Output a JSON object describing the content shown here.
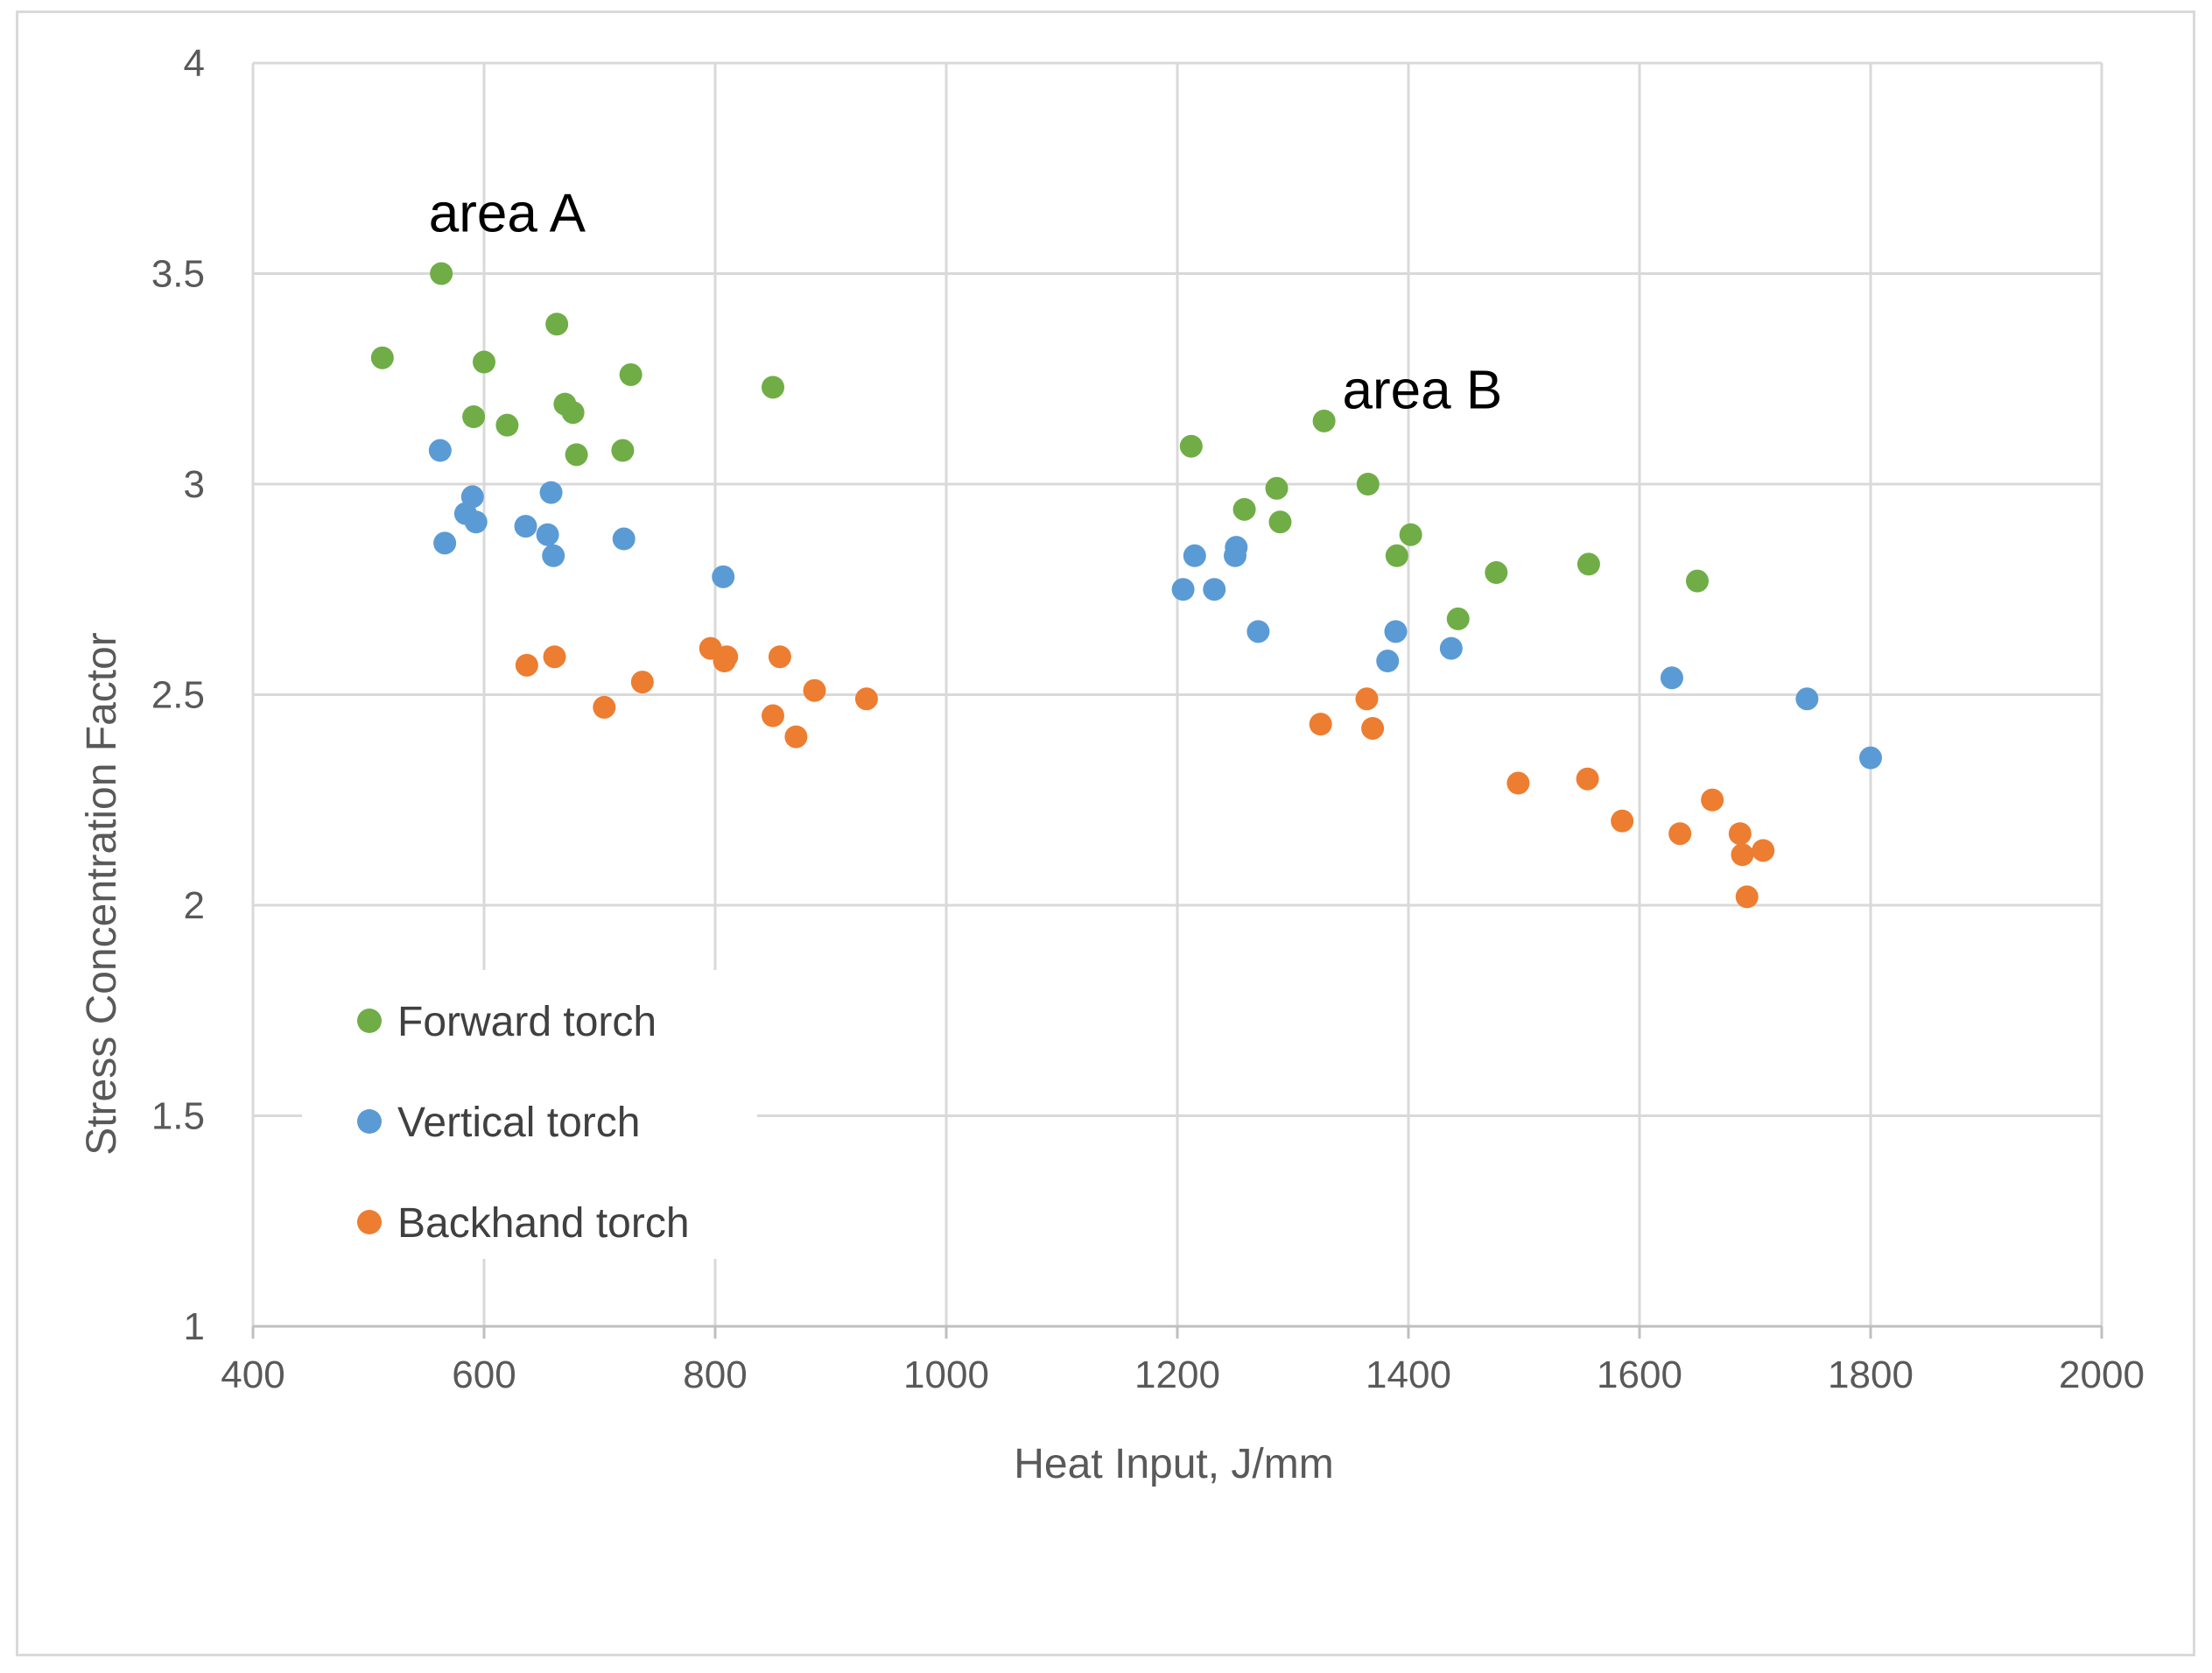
{
  "chart_data": {
    "type": "scatter",
    "title": "",
    "xlabel": "Heat Input, J/mm",
    "ylabel": "Stress Concentration Factor",
    "xlim": [
      400,
      2000
    ],
    "ylim": [
      1,
      4
    ],
    "xticks": [
      400,
      600,
      800,
      1000,
      1200,
      1400,
      1600,
      1800,
      2000
    ],
    "yticks": [
      1,
      1.5,
      2,
      2.5,
      3,
      3.5,
      4
    ],
    "xtick_labels": [
      "400",
      "600",
      "800",
      "1000",
      "1200",
      "1400",
      "1600",
      "1800",
      "2000"
    ],
    "ytick_labels": [
      "1",
      "1.5",
      "2",
      "2.5",
      "3",
      "3.5",
      "4"
    ],
    "grid": true,
    "legend_position": "bottom-left",
    "annotations": [
      {
        "text": "area A",
        "x": 620,
        "y": 3.6
      },
      {
        "text": "area B",
        "x": 1412,
        "y": 3.18
      }
    ],
    "series": [
      {
        "name": "Forward torch",
        "color": "#70ad47",
        "points": [
          [
            512,
            3.3
          ],
          [
            563,
            3.5
          ],
          [
            591,
            3.16
          ],
          [
            600,
            3.29
          ],
          [
            620,
            3.14
          ],
          [
            663,
            3.38
          ],
          [
            670,
            3.19
          ],
          [
            677,
            3.17
          ],
          [
            680,
            3.07
          ],
          [
            720,
            3.08
          ],
          [
            727,
            3.26
          ],
          [
            850,
            3.23
          ],
          [
            1212,
            3.09
          ],
          [
            1258,
            2.94
          ],
          [
            1286,
            2.99
          ],
          [
            1289,
            2.91
          ],
          [
            1327,
            3.15
          ],
          [
            1365,
            3.0
          ],
          [
            1390,
            2.83
          ],
          [
            1402,
            2.88
          ],
          [
            1443,
            2.68
          ],
          [
            1476,
            2.79
          ],
          [
            1556,
            2.81
          ],
          [
            1650,
            2.77
          ]
        ]
      },
      {
        "name": "Vertical torch",
        "color": "#5b9bd5",
        "points": [
          [
            562,
            3.08
          ],
          [
            566,
            2.86
          ],
          [
            584,
            2.93
          ],
          [
            590,
            2.97
          ],
          [
            593,
            2.91
          ],
          [
            636,
            2.9
          ],
          [
            655,
            2.88
          ],
          [
            658,
            2.98
          ],
          [
            660,
            2.83
          ],
          [
            721,
            2.87
          ],
          [
            807,
            2.78
          ],
          [
            1205,
            2.75
          ],
          [
            1215,
            2.83
          ],
          [
            1232,
            2.75
          ],
          [
            1250,
            2.83
          ],
          [
            1251,
            2.85
          ],
          [
            1270,
            2.65
          ],
          [
            1382,
            2.58
          ],
          [
            1389,
            2.65
          ],
          [
            1437,
            2.61
          ],
          [
            1628,
            2.54
          ],
          [
            1745,
            2.49
          ],
          [
            1800,
            2.35
          ]
        ]
      },
      {
        "name": "Backhand torch",
        "color": "#ed7d31",
        "points": [
          [
            637,
            2.57
          ],
          [
            661,
            2.59
          ],
          [
            704,
            2.47
          ],
          [
            737,
            2.53
          ],
          [
            796,
            2.61
          ],
          [
            808,
            2.58
          ],
          [
            810,
            2.59
          ],
          [
            850,
            2.45
          ],
          [
            856,
            2.59
          ],
          [
            870,
            2.4
          ],
          [
            886,
            2.51
          ],
          [
            931,
            2.49
          ],
          [
            1324,
            2.43
          ],
          [
            1364,
            2.49
          ],
          [
            1369,
            2.42
          ],
          [
            1495,
            2.29
          ],
          [
            1555,
            2.3
          ],
          [
            1585,
            2.2
          ],
          [
            1635,
            2.17
          ],
          [
            1663,
            2.25
          ],
          [
            1687,
            2.17
          ],
          [
            1689,
            2.12
          ],
          [
            1693,
            2.02
          ],
          [
            1707,
            2.13
          ]
        ]
      }
    ]
  }
}
